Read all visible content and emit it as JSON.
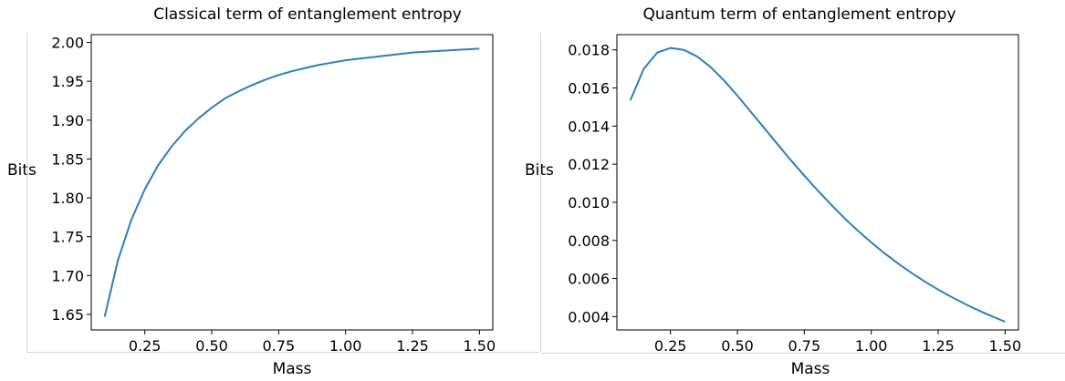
{
  "chart_data": [
    {
      "type": "line",
      "title": "Classical term of entanglement entropy",
      "xlabel": "Mass",
      "ylabel": "Bits",
      "xlim": [
        0.05,
        1.55
      ],
      "ylim": [
        1.63,
        2.01
      ],
      "xticks": [
        0.25,
        0.5,
        0.75,
        1.0,
        1.25,
        1.5
      ],
      "xtick_labels": [
        "0.25",
        "0.50",
        "0.75",
        "1.00",
        "1.25",
        "1.50"
      ],
      "yticks": [
        1.65,
        1.7,
        1.75,
        1.8,
        1.85,
        1.9,
        1.95,
        2.0
      ],
      "ytick_labels": [
        "1.65",
        "1.70",
        "1.75",
        "1.80",
        "1.85",
        "1.90",
        "1.95",
        "2.00"
      ],
      "grid": false,
      "color": "#2e7ebc",
      "x": [
        0.1,
        0.15,
        0.2,
        0.25,
        0.3,
        0.35,
        0.4,
        0.45,
        0.5,
        0.55,
        0.6,
        0.65,
        0.7,
        0.75,
        0.8,
        0.85,
        0.9,
        0.95,
        1.0,
        1.05,
        1.1,
        1.15,
        1.2,
        1.25,
        1.3,
        1.35,
        1.4,
        1.45,
        1.5
      ],
      "y": [
        1.647,
        1.72,
        1.772,
        1.811,
        1.842,
        1.866,
        1.886,
        1.902,
        1.916,
        1.928,
        1.937,
        1.945,
        1.952,
        1.958,
        1.963,
        1.967,
        1.971,
        1.974,
        1.977,
        1.979,
        1.981,
        1.983,
        1.985,
        1.987,
        1.988,
        1.989,
        1.99,
        1.991,
        1.992
      ]
    },
    {
      "type": "line",
      "title": "Quantum term of entanglement entropy",
      "xlabel": "Mass",
      "ylabel": "Bits",
      "xlim": [
        0.05,
        1.55
      ],
      "ylim": [
        0.0033,
        0.0188
      ],
      "xticks": [
        0.25,
        0.5,
        0.75,
        1.0,
        1.25,
        1.5
      ],
      "xtick_labels": [
        "0.25",
        "0.50",
        "0.75",
        "1.00",
        "1.25",
        "1.50"
      ],
      "yticks": [
        0.004,
        0.006,
        0.008,
        0.01,
        0.012,
        0.014,
        0.016,
        0.018
      ],
      "ytick_labels": [
        "0.004",
        "0.006",
        "0.008",
        "0.010",
        "0.012",
        "0.014",
        "0.016",
        "0.018"
      ],
      "grid": false,
      "color": "#2e7ebc",
      "x": [
        0.1,
        0.15,
        0.2,
        0.25,
        0.3,
        0.35,
        0.4,
        0.45,
        0.5,
        0.55,
        0.6,
        0.65,
        0.7,
        0.75,
        0.8,
        0.85,
        0.9,
        0.95,
        1.0,
        1.05,
        1.1,
        1.15,
        1.2,
        1.25,
        1.3,
        1.35,
        1.4,
        1.45,
        1.5
      ],
      "y": [
        0.01535,
        0.017,
        0.01785,
        0.0181,
        0.018,
        0.01765,
        0.0171,
        0.0164,
        0.0156,
        0.01475,
        0.0139,
        0.01305,
        0.0122,
        0.0114,
        0.01062,
        0.00988,
        0.00917,
        0.00851,
        0.0079,
        0.00732,
        0.00679,
        0.0063,
        0.00584,
        0.00542,
        0.00503,
        0.00467,
        0.00433,
        0.00402,
        0.00373
      ]
    }
  ]
}
